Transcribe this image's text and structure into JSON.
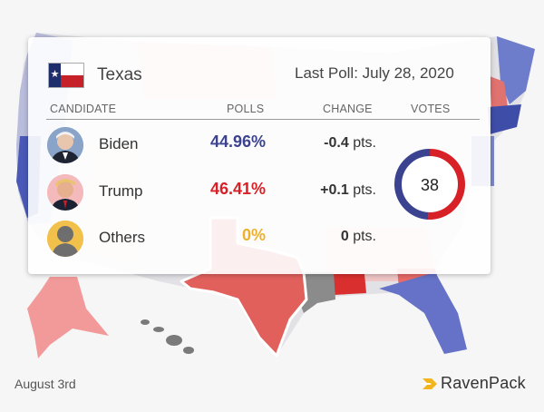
{
  "card": {
    "state": "Texas",
    "last_poll": "Last Poll: July 28, 2020",
    "headers": {
      "candidate": "CANDIDATE",
      "polls": "POLLS",
      "change": "CHANGE",
      "votes": "VOTES"
    },
    "candidates": [
      {
        "name": "Biden",
        "poll": "44.96%",
        "change_value": "-0.4",
        "change_unit": "pts.",
        "color": "#3b4390"
      },
      {
        "name": "Trump",
        "poll": "46.41%",
        "change_value": "+0.1",
        "change_unit": "pts.",
        "color": "#d82027"
      },
      {
        "name": "Others",
        "poll": "0%",
        "change_value": "0",
        "change_unit": "pts.",
        "color": "#efb02c"
      }
    ],
    "votes": "38",
    "vote_share": {
      "democrat": 0.4921,
      "republican": 0.5079
    }
  },
  "footer": {
    "date": "August 3rd",
    "brand": "RavenPack"
  },
  "colors": {
    "democrat": "#3b4390",
    "republican": "#d82027",
    "others": "#efb02c",
    "brand_accent": "#f2b51c"
  }
}
